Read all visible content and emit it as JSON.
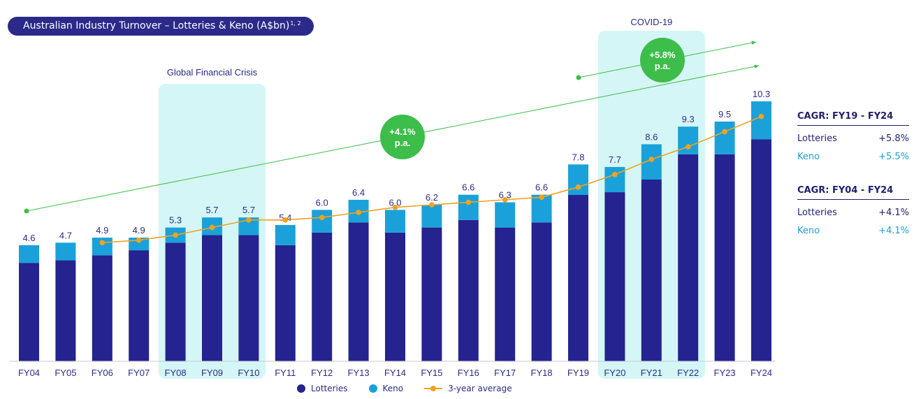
{
  "title": "Australian Industry Turnover – Lotteries & Keno (A$bn)",
  "title_superscript": "1, 2",
  "colors": {
    "lotteries": "#25238f",
    "keno": "#1ba1d9",
    "average": "#f2a21e",
    "trend": "#3dbd4a",
    "shade": "#d5f6f6",
    "text": "#2b2a8a"
  },
  "chart_data": {
    "type": "bar",
    "categories": [
      "FY04",
      "FY05",
      "FY06",
      "FY07",
      "FY08",
      "FY09",
      "FY10",
      "FY11",
      "FY12",
      "FY13",
      "FY14",
      "FY15",
      "FY16",
      "FY17",
      "FY18",
      "FY19",
      "FY20",
      "FY21",
      "FY22",
      "FY23",
      "FY24"
    ],
    "series": [
      {
        "name": "Lotteries",
        "values": [
          3.9,
          4.0,
          4.2,
          4.4,
          4.7,
          5.0,
          5.0,
          4.6,
          5.1,
          5.5,
          5.1,
          5.3,
          5.6,
          5.3,
          5.5,
          6.6,
          6.7,
          7.2,
          8.2,
          8.2,
          8.8
        ]
      },
      {
        "name": "Keno",
        "values": [
          0.7,
          0.7,
          0.7,
          0.5,
          0.6,
          0.7,
          0.7,
          0.8,
          0.9,
          0.9,
          0.9,
          0.9,
          1.0,
          1.0,
          1.1,
          1.2,
          1.0,
          1.4,
          1.1,
          1.3,
          1.5
        ]
      },
      {
        "name": "3-year average",
        "values": [
          null,
          null,
          4.7,
          4.8,
          5.0,
          5.3,
          5.6,
          5.6,
          5.7,
          5.9,
          6.1,
          6.2,
          6.3,
          6.4,
          6.5,
          6.9,
          7.4,
          8.0,
          8.5,
          9.1,
          9.7
        ]
      }
    ],
    "totals": [
      "4.6",
      "4.7",
      "4.9",
      "4.9",
      "5.3",
      "5.7",
      "5.7",
      "5.4",
      "6.0",
      "6.4",
      "6.0",
      "6.2",
      "6.6",
      "6.3",
      "6.6",
      "7.8",
      "7.7",
      "8.6",
      "9.3",
      "9.5",
      "10.3"
    ],
    "ylim": [
      0,
      10.8
    ],
    "shaded_periods": [
      {
        "label": "Global Financial Crisis",
        "from": "FY08",
        "to": "FY10"
      },
      {
        "label": "COVID-19",
        "from": "FY20",
        "to": "FY22"
      }
    ],
    "trend_labels": [
      {
        "label": "+4.1%\np.a."
      },
      {
        "label": "+5.8%\np.a."
      }
    ],
    "legend": [
      "Lotteries",
      "Keno",
      "3-year average"
    ]
  },
  "cagr_tables": [
    {
      "heading": "CAGR: FY19 - FY24",
      "rows": [
        {
          "name": "Lotteries",
          "value": "+5.8%"
        },
        {
          "name": "Keno",
          "value": "+5.5%"
        }
      ]
    },
    {
      "heading": "CAGR: FY04 - FY24",
      "rows": [
        {
          "name": "Lotteries",
          "value": "+4.1%"
        },
        {
          "name": "Keno",
          "value": "+4.1%"
        }
      ]
    }
  ]
}
